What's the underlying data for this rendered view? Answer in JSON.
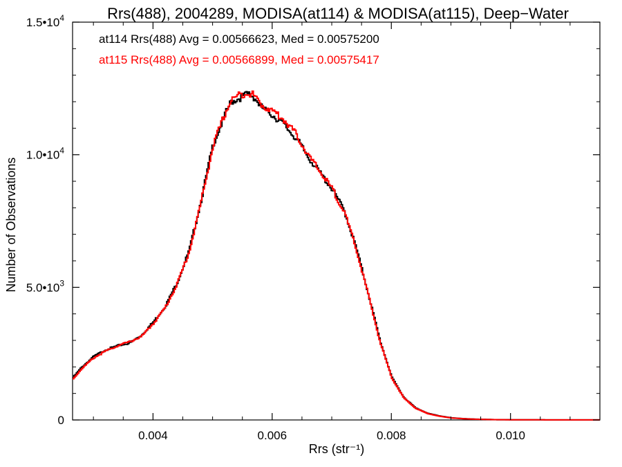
{
  "chart_data": {
    "type": "line",
    "title": "Rrs(488), 2004289, MODISA(at114) & MODISA(at115), Deep−Water",
    "xlabel": "Rrs (str⁻¹)",
    "ylabel": "Number of Observations",
    "xlim": [
      0.00265,
      0.0115
    ],
    "ylim": [
      0,
      15000
    ],
    "x_ticks": [
      {
        "value": 0.004,
        "label": "0.004"
      },
      {
        "value": 0.006,
        "label": "0.006"
      },
      {
        "value": 0.008,
        "label": "0.008"
      },
      {
        "value": 0.01,
        "label": "0.010"
      }
    ],
    "y_ticks": [
      {
        "value": 0,
        "label": "0",
        "exp": ""
      },
      {
        "value": 5000,
        "label": "5.0•10",
        "exp": "3"
      },
      {
        "value": 10000,
        "label": "1.0•10",
        "exp": "4"
      },
      {
        "value": 15000,
        "label": "1.5•10",
        "exp": "4"
      }
    ],
    "series": [
      {
        "name": "at114",
        "color": "#000000",
        "annotation": "at114 Rrs(488) Avg = 0.00566623, Med = 0.00575200",
        "x": [
          0.00265,
          0.0028,
          0.003,
          0.0032,
          0.0034,
          0.0036,
          0.0038,
          0.004,
          0.0042,
          0.0044,
          0.0046,
          0.0048,
          0.005,
          0.0052,
          0.0053,
          0.0054,
          0.0055,
          0.0056,
          0.0057,
          0.0058,
          0.006,
          0.0062,
          0.0064,
          0.0066,
          0.0068,
          0.007,
          0.0072,
          0.0074,
          0.0076,
          0.0078,
          0.008,
          0.0082,
          0.0084,
          0.0086,
          0.0088,
          0.009,
          0.0092,
          0.0094,
          0.0096,
          0.0098,
          0.01,
          0.0105,
          0.011,
          0.0115
        ],
        "y": [
          1600,
          2000,
          2400,
          2650,
          2800,
          2900,
          3200,
          3700,
          4300,
          5200,
          6400,
          8300,
          10400,
          11500,
          12000,
          12100,
          12200,
          12300,
          12150,
          11800,
          11500,
          11100,
          10600,
          9900,
          9300,
          8700,
          7900,
          6500,
          4800,
          3000,
          1600,
          850,
          450,
          250,
          150,
          80,
          50,
          30,
          20,
          10,
          8,
          5,
          3,
          2
        ]
      },
      {
        "name": "at115",
        "color": "#ff0000",
        "annotation": "at115 Rrs(488) Avg = 0.00566899, Med = 0.00575417",
        "x": [
          0.00265,
          0.0028,
          0.003,
          0.0032,
          0.0034,
          0.0036,
          0.0038,
          0.004,
          0.0042,
          0.0044,
          0.0046,
          0.0048,
          0.005,
          0.0052,
          0.0053,
          0.0054,
          0.0055,
          0.0056,
          0.0057,
          0.0058,
          0.006,
          0.0062,
          0.0064,
          0.0066,
          0.0068,
          0.007,
          0.0072,
          0.0074,
          0.0076,
          0.0078,
          0.008,
          0.0082,
          0.0084,
          0.0086,
          0.0088,
          0.009,
          0.0092,
          0.0094,
          0.0096,
          0.0098,
          0.01,
          0.0105,
          0.011,
          0.0115
        ],
        "y": [
          1550,
          1950,
          2350,
          2600,
          2800,
          2950,
          3150,
          3650,
          4250,
          5150,
          6350,
          8250,
          10350,
          11550,
          12050,
          12200,
          12300,
          12350,
          12200,
          11900,
          11650,
          11300,
          10750,
          9950,
          9350,
          8700,
          7850,
          6450,
          4750,
          2950,
          1580,
          830,
          440,
          240,
          140,
          75,
          45,
          28,
          18,
          10,
          7,
          5,
          3,
          2
        ]
      }
    ],
    "grid": false,
    "legend": "annotations top-left"
  }
}
